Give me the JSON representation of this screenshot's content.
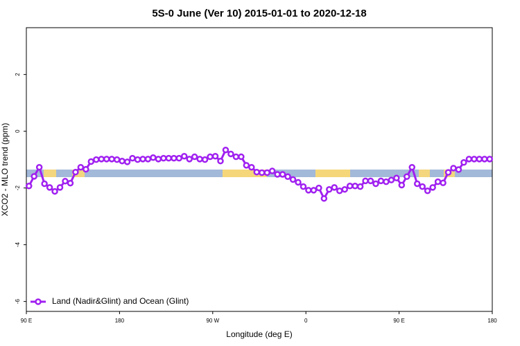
{
  "chart_data": {
    "type": "line",
    "title": "5S-0 June (Ver 10)   2015-01-01 to 2020-12-18",
    "x_label": "Longitude (deg E)",
    "y_label": "XCO2 - MLO trend (ppm)",
    "xlim": [
      90,
      540
    ],
    "ylim": [
      -6.35,
      3.65
    ],
    "xticks": [
      {
        "value": 90,
        "label": "90 E"
      },
      180,
      {
        "value": 270,
        "label": "90 W"
      },
      {
        "value": 360,
        "label": "0"
      },
      {
        "value": 450,
        "label": "90 E"
      },
      {
        "value": 540,
        "label": "180"
      }
    ],
    "yticks": [
      -6,
      -4,
      -2,
      0,
      2
    ],
    "legend": "bottom-left",
    "x": [
      92.5,
      97.5,
      102.5,
      107.5,
      112.5,
      117.5,
      122.5,
      127.5,
      132.5,
      137.5,
      142.5,
      147.5,
      152.5,
      157.5,
      162.5,
      167.5,
      172.5,
      177.5,
      182.5,
      187.5,
      192.5,
      197.5,
      202.5,
      207.5,
      212.5,
      217.5,
      222.5,
      227.5,
      232.5,
      237.5,
      242.5,
      247.5,
      252.5,
      257.5,
      262.5,
      267.5,
      272.5,
      277.5,
      282.5,
      287.5,
      292.5,
      297.5,
      302.5,
      307.5,
      312.5,
      317.5,
      322.5,
      327.5,
      332.5,
      337.5,
      342.5,
      347.5,
      352.5,
      357.5,
      362.5,
      367.5,
      372.5,
      377.5,
      382.5,
      387.5,
      392.5,
      397.5,
      402.5,
      407.5,
      412.5,
      417.5,
      422.5,
      427.5,
      432.5,
      437.5,
      442.5,
      447.5,
      452.5,
      457.5,
      462.5,
      467.5,
      472.5,
      477.5,
      482.5,
      487.5,
      492.5,
      497.5,
      502.5,
      507.5,
      512.5,
      517.5,
      522.5,
      527.5,
      532.5,
      537.5
    ],
    "series": [
      {
        "name": "Land (Nadir&Glint) and Ocean (Glint)",
        "color": "#a020f0",
        "values": [
          -1.93,
          -1.59,
          -1.27,
          -1.85,
          -1.98,
          -2.12,
          -1.98,
          -1.76,
          -1.83,
          -1.44,
          -1.27,
          -1.34,
          -1.07,
          -1.0,
          -0.98,
          -0.98,
          -0.98,
          -1.0,
          -1.05,
          -1.08,
          -0.95,
          -1.0,
          -0.98,
          -0.98,
          -0.93,
          -0.98,
          -0.95,
          -0.95,
          -0.95,
          -0.95,
          -0.88,
          -0.98,
          -0.9,
          -0.98,
          -1.0,
          -0.9,
          -0.88,
          -1.05,
          -0.66,
          -0.8,
          -0.9,
          -0.9,
          -1.2,
          -1.27,
          -1.44,
          -1.46,
          -1.46,
          -1.4,
          -1.52,
          -1.52,
          -1.6,
          -1.7,
          -1.8,
          -1.95,
          -2.08,
          -2.08,
          -2.0,
          -2.37,
          -2.05,
          -1.98,
          -2.1,
          -2.05,
          -1.93,
          -1.93,
          -1.95,
          -1.75,
          -1.75,
          -1.85,
          -1.75,
          -1.78,
          -1.72,
          -1.65,
          -1.9,
          -1.6,
          -1.27,
          -1.85,
          -1.95,
          -2.1,
          -1.98,
          -1.78,
          -1.82,
          -1.45,
          -1.3,
          -1.35,
          -1.1,
          -0.98,
          -0.98,
          -0.98,
          -0.98,
          -0.98
        ]
      }
    ]
  }
}
